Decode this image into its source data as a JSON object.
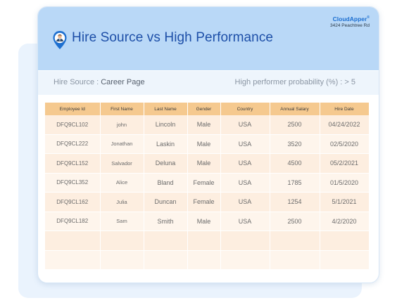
{
  "brand": {
    "name": "CloudApper",
    "mark": "®",
    "address": "3424 Peachtree Rd"
  },
  "report": {
    "title": "Hire Source vs High Performance",
    "icon": "location-pin-person-icon"
  },
  "filters": {
    "hire_source_label": "Hire Source :",
    "hire_source_value": "Career Page",
    "probability_label": "High performer probability (%) : > 5"
  },
  "table": {
    "columns": [
      "Employee Id",
      "First Name",
      "Last Name",
      "Gender",
      "Country",
      "Annual Salary",
      "Hire Date"
    ],
    "rows": [
      [
        "DFQ9CL102",
        "john",
        "Lincoln",
        "Male",
        "USA",
        "2500",
        "04/24/2022"
      ],
      [
        "DFQ9CL222",
        "Jonathan",
        "Laskin",
        "Male",
        "USA",
        "3520",
        "02/5/2020"
      ],
      [
        "DFQ9CL152",
        "Salvador",
        "Deluna",
        "Male",
        "USA",
        "4500",
        "05/2/2021"
      ],
      [
        "DFQ9CL352",
        "Alice",
        "Bland",
        "Female",
        "USA",
        "1785",
        "01/5/2020"
      ],
      [
        "DFQ9CL162",
        "Julia",
        "Duncan",
        "Female",
        "USA",
        "1254",
        "5/1/2021"
      ],
      [
        "DFQ9CL182",
        "Sam",
        "Smith",
        "Male",
        "USA",
        "2500",
        "4/2/2020"
      ],
      [
        "",
        "",
        "",
        "",
        "",
        "",
        ""
      ],
      [
        "",
        "",
        "",
        "",
        "",
        "",
        ""
      ]
    ]
  },
  "colors": {
    "header_bg": "#b9d8f7",
    "title": "#1d4fa8",
    "table_head": "#f5c98f",
    "row_a": "#fdeee0",
    "row_b": "#fef5ec",
    "brand": "#1d6fd0"
  }
}
